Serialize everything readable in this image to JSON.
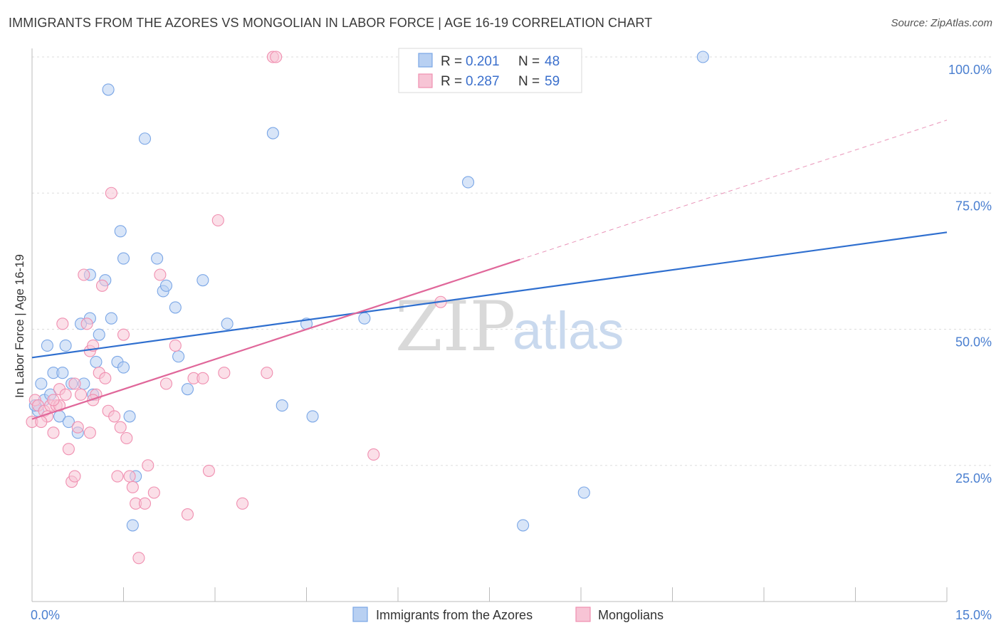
{
  "header": {
    "title": "IMMIGRANTS FROM THE AZORES VS MONGOLIAN IN LABOR FORCE | AGE 16-19 CORRELATION CHART",
    "source": "Source: ZipAtlas.com"
  },
  "watermark": {
    "zip": "ZIP",
    "atlas": "atlas"
  },
  "chart_data": {
    "type": "scatter",
    "title": "IMMIGRANTS FROM THE AZORES VS MONGOLIAN IN LABOR FORCE | AGE 16-19 CORRELATION CHART",
    "xlabel": "",
    "ylabel": "In Labor Force | Age 16-19",
    "xlim": [
      0,
      15
    ],
    "ylim": [
      0,
      102
    ],
    "x_tick_labels": [
      {
        "v": 0,
        "label": "0.0%"
      },
      {
        "v": 15,
        "label": "15.0%"
      }
    ],
    "y_tick_labels": [
      {
        "v": 25,
        "label": "25.0%"
      },
      {
        "v": 50,
        "label": "50.0%"
      },
      {
        "v": 75,
        "label": "75.0%"
      },
      {
        "v": 100,
        "label": "100.0%"
      }
    ],
    "grid": true,
    "legend_position": "top-center",
    "stats": [
      {
        "r_label": "R =",
        "r": "0.201",
        "n_label": "N =",
        "n": "48"
      },
      {
        "r_label": "R =",
        "r": "0.287",
        "n_label": "N =",
        "n": "59"
      }
    ],
    "series": [
      {
        "name": "Immigrants from the Azores",
        "color": "#7aa6e6",
        "fill": "#b8d0f2",
        "line_color": "#2f6fcf",
        "trend": {
          "x0": 0.0,
          "y0": 44.8,
          "x1": 15.0,
          "y1": 67.8
        },
        "points": [
          [
            0.1,
            35
          ],
          [
            0.15,
            40
          ],
          [
            0.2,
            37
          ],
          [
            0.25,
            47
          ],
          [
            0.3,
            38
          ],
          [
            0.35,
            42
          ],
          [
            0.45,
            34
          ],
          [
            0.5,
            42
          ],
          [
            0.55,
            47
          ],
          [
            0.6,
            33
          ],
          [
            0.65,
            40
          ],
          [
            0.75,
            31
          ],
          [
            0.8,
            51
          ],
          [
            0.85,
            40
          ],
          [
            0.95,
            60
          ],
          [
            0.95,
            52
          ],
          [
            1.0,
            38
          ],
          [
            1.05,
            44
          ],
          [
            1.1,
            49
          ],
          [
            1.2,
            59
          ],
          [
            1.25,
            94
          ],
          [
            1.3,
            52
          ],
          [
            1.4,
            44
          ],
          [
            1.45,
            68
          ],
          [
            1.5,
            63
          ],
          [
            1.5,
            43
          ],
          [
            1.6,
            34
          ],
          [
            1.65,
            14
          ],
          [
            1.7,
            23
          ],
          [
            1.85,
            85
          ],
          [
            2.05,
            63
          ],
          [
            2.15,
            57
          ],
          [
            2.2,
            58
          ],
          [
            2.35,
            54
          ],
          [
            2.4,
            45
          ],
          [
            2.55,
            39
          ],
          [
            2.8,
            59
          ],
          [
            3.2,
            51
          ],
          [
            3.95,
            86
          ],
          [
            4.1,
            36
          ],
          [
            4.5,
            51
          ],
          [
            4.6,
            34
          ],
          [
            5.45,
            52
          ],
          [
            7.15,
            77
          ],
          [
            8.05,
            14
          ],
          [
            9.05,
            20
          ],
          [
            11.0,
            100
          ],
          [
            0.05,
            36
          ]
        ]
      },
      {
        "name": "Mongolians",
        "color": "#f08fb0",
        "fill": "#f7c4d5",
        "line_color": "#e0679a",
        "trend": {
          "x0": 0.0,
          "y0": 33.5,
          "x1": 8.0,
          "y1": 62.8
        },
        "trend_dash": {
          "x0": 8.0,
          "y0": 62.8,
          "x1": 15.0,
          "y1": 88.4
        },
        "points": [
          [
            0.0,
            33
          ],
          [
            0.05,
            37
          ],
          [
            0.1,
            36
          ],
          [
            0.2,
            35
          ],
          [
            0.25,
            34
          ],
          [
            0.3,
            36
          ],
          [
            0.35,
            31
          ],
          [
            0.4,
            36
          ],
          [
            0.45,
            39
          ],
          [
            0.5,
            51
          ],
          [
            0.55,
            38
          ],
          [
            0.6,
            28
          ],
          [
            0.65,
            22
          ],
          [
            0.7,
            23
          ],
          [
            0.75,
            32
          ],
          [
            0.8,
            38
          ],
          [
            0.85,
            60
          ],
          [
            0.9,
            51
          ],
          [
            0.95,
            46
          ],
          [
            1.0,
            47
          ],
          [
            1.05,
            38
          ],
          [
            1.1,
            42
          ],
          [
            1.15,
            58
          ],
          [
            1.2,
            41
          ],
          [
            1.25,
            35
          ],
          [
            1.3,
            75
          ],
          [
            1.35,
            34
          ],
          [
            1.4,
            23
          ],
          [
            1.45,
            32
          ],
          [
            1.5,
            49
          ],
          [
            1.55,
            30
          ],
          [
            1.6,
            23
          ],
          [
            1.65,
            21
          ],
          [
            1.7,
            18
          ],
          [
            1.75,
            8
          ],
          [
            1.85,
            18
          ],
          [
            1.9,
            25
          ],
          [
            2.0,
            20
          ],
          [
            2.1,
            60
          ],
          [
            2.2,
            40
          ],
          [
            2.35,
            47
          ],
          [
            2.55,
            16
          ],
          [
            2.65,
            41
          ],
          [
            2.8,
            41
          ],
          [
            2.9,
            24
          ],
          [
            3.05,
            70
          ],
          [
            3.15,
            42
          ],
          [
            3.45,
            18
          ],
          [
            3.85,
            42
          ],
          [
            3.95,
            100
          ],
          [
            4.0,
            100
          ],
          [
            5.6,
            27
          ],
          [
            6.7,
            55
          ],
          [
            0.15,
            33
          ],
          [
            0.45,
            36
          ],
          [
            0.7,
            40
          ],
          [
            0.95,
            31
          ],
          [
            1.0,
            37
          ],
          [
            0.35,
            37
          ]
        ]
      }
    ]
  }
}
